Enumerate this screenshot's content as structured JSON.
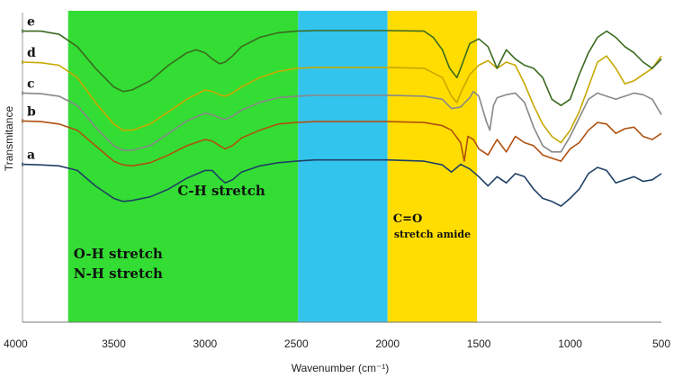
{
  "chart_data": {
    "type": "line",
    "title": "",
    "xlabel": "Wavenumber (cm⁻¹)",
    "ylabel": "Transmitance",
    "xlim": [
      4000,
      500
    ],
    "x_ticks": [
      "4000",
      "3500",
      "3000",
      "2500",
      "2000",
      "1500",
      "1000",
      "500"
    ],
    "x_tick_values": [
      4000,
      3500,
      3000,
      2500,
      2000,
      1500,
      1000,
      500
    ],
    "y_ticks_shown": false,
    "ylim": [
      0,
      100
    ],
    "bands": [
      {
        "from": 3750,
        "to": 2490,
        "color": "#33dd33",
        "labels": [
          "O-H stretch",
          "N-H stretch"
        ]
      },
      {
        "from": 2490,
        "to": 2000,
        "color": "#33c4ee",
        "labels": []
      },
      {
        "from": 2000,
        "to": 1510,
        "color": "#ffdd00",
        "labels": [
          "C=O",
          "stretch amide"
        ]
      }
    ],
    "annotations": [
      {
        "text": "C-H stretch",
        "x": 2910,
        "y": 41
      }
    ],
    "series": [
      {
        "name": "a",
        "color": "#1f3f66",
        "points": [
          [
            4000,
            51
          ],
          [
            3900,
            50.8
          ],
          [
            3800,
            50.5
          ],
          [
            3700,
            49
          ],
          [
            3600,
            44
          ],
          [
            3500,
            40
          ],
          [
            3450,
            39
          ],
          [
            3400,
            39.3
          ],
          [
            3300,
            40.5
          ],
          [
            3200,
            43
          ],
          [
            3100,
            46.5
          ],
          [
            3000,
            49
          ],
          [
            2960,
            49
          ],
          [
            2920,
            46.5
          ],
          [
            2890,
            45
          ],
          [
            2850,
            46
          ],
          [
            2800,
            48.5
          ],
          [
            2700,
            50.5
          ],
          [
            2600,
            51.5
          ],
          [
            2500,
            52
          ],
          [
            2400,
            52.4
          ],
          [
            2200,
            52.4
          ],
          [
            2000,
            52.4
          ],
          [
            1800,
            52
          ],
          [
            1700,
            50.8
          ],
          [
            1650,
            48.5
          ],
          [
            1600,
            51
          ],
          [
            1550,
            49.5
          ],
          [
            1500,
            47
          ],
          [
            1450,
            44
          ],
          [
            1400,
            47
          ],
          [
            1350,
            45
          ],
          [
            1300,
            48
          ],
          [
            1250,
            47
          ],
          [
            1200,
            43
          ],
          [
            1150,
            40
          ],
          [
            1100,
            39
          ],
          [
            1050,
            37.5
          ],
          [
            1000,
            40
          ],
          [
            950,
            43
          ],
          [
            900,
            48
          ],
          [
            850,
            50
          ],
          [
            800,
            49
          ],
          [
            750,
            45
          ],
          [
            700,
            46
          ],
          [
            650,
            47
          ],
          [
            600,
            45.5
          ],
          [
            550,
            46
          ],
          [
            500,
            48
          ]
        ]
      },
      {
        "name": "b",
        "color": "#b05010",
        "points": [
          [
            4000,
            65
          ],
          [
            3900,
            64.8
          ],
          [
            3800,
            64
          ],
          [
            3700,
            62
          ],
          [
            3600,
            57
          ],
          [
            3500,
            52
          ],
          [
            3450,
            50.8
          ],
          [
            3400,
            50.5
          ],
          [
            3300,
            51.5
          ],
          [
            3200,
            54
          ],
          [
            3100,
            57
          ],
          [
            3000,
            59
          ],
          [
            2960,
            58.5
          ],
          [
            2920,
            57
          ],
          [
            2890,
            56
          ],
          [
            2850,
            57
          ],
          [
            2800,
            59.5
          ],
          [
            2700,
            62
          ],
          [
            2600,
            64
          ],
          [
            2500,
            64.5
          ],
          [
            2400,
            64.8
          ],
          [
            2200,
            64.8
          ],
          [
            2000,
            64.8
          ],
          [
            1800,
            64.5
          ],
          [
            1700,
            63.5
          ],
          [
            1650,
            62
          ],
          [
            1600,
            58
          ],
          [
            1580,
            52
          ],
          [
            1560,
            60
          ],
          [
            1530,
            59
          ],
          [
            1500,
            56
          ],
          [
            1450,
            54
          ],
          [
            1400,
            59
          ],
          [
            1350,
            55
          ],
          [
            1300,
            60
          ],
          [
            1250,
            58
          ],
          [
            1200,
            57
          ],
          [
            1150,
            54
          ],
          [
            1100,
            53
          ],
          [
            1050,
            52
          ],
          [
            1000,
            56
          ],
          [
            950,
            58
          ],
          [
            900,
            62
          ],
          [
            850,
            64.5
          ],
          [
            800,
            64
          ],
          [
            750,
            61
          ],
          [
            700,
            62.5
          ],
          [
            650,
            63
          ],
          [
            600,
            60
          ],
          [
            550,
            59
          ],
          [
            500,
            61
          ]
        ]
      },
      {
        "name": "c",
        "color": "#888888",
        "points": [
          [
            4000,
            74
          ],
          [
            3900,
            73.8
          ],
          [
            3800,
            73
          ],
          [
            3700,
            70
          ],
          [
            3600,
            63
          ],
          [
            3500,
            57
          ],
          [
            3450,
            55.5
          ],
          [
            3400,
            55.5
          ],
          [
            3300,
            57
          ],
          [
            3200,
            61
          ],
          [
            3100,
            65
          ],
          [
            3000,
            67.5
          ],
          [
            2960,
            67
          ],
          [
            2920,
            66
          ],
          [
            2890,
            65.5
          ],
          [
            2850,
            66.5
          ],
          [
            2800,
            68.5
          ],
          [
            2700,
            71
          ],
          [
            2600,
            72.5
          ],
          [
            2500,
            73
          ],
          [
            2400,
            73.3
          ],
          [
            2200,
            73.3
          ],
          [
            2000,
            73.3
          ],
          [
            1800,
            73
          ],
          [
            1700,
            72
          ],
          [
            1650,
            69
          ],
          [
            1600,
            69.5
          ],
          [
            1550,
            72.5
          ],
          [
            1530,
            74.5
          ],
          [
            1500,
            73
          ],
          [
            1460,
            65
          ],
          [
            1440,
            62
          ],
          [
            1420,
            70
          ],
          [
            1400,
            72.5
          ],
          [
            1350,
            73.5
          ],
          [
            1300,
            74
          ],
          [
            1250,
            71
          ],
          [
            1200,
            63
          ],
          [
            1150,
            57
          ],
          [
            1100,
            55
          ],
          [
            1050,
            55
          ],
          [
            1000,
            60
          ],
          [
            950,
            66
          ],
          [
            900,
            72
          ],
          [
            850,
            74
          ],
          [
            800,
            73
          ],
          [
            750,
            72
          ],
          [
            700,
            73
          ],
          [
            650,
            74
          ],
          [
            600,
            73.5
          ],
          [
            550,
            72
          ],
          [
            500,
            67
          ]
        ]
      },
      {
        "name": "d",
        "color": "#c8a800",
        "points": [
          [
            4000,
            84
          ],
          [
            3900,
            83.8
          ],
          [
            3800,
            83
          ],
          [
            3700,
            79
          ],
          [
            3600,
            71
          ],
          [
            3500,
            64
          ],
          [
            3450,
            62
          ],
          [
            3400,
            62
          ],
          [
            3300,
            64
          ],
          [
            3200,
            68
          ],
          [
            3100,
            72
          ],
          [
            3000,
            75
          ],
          [
            2960,
            74.5
          ],
          [
            2920,
            73.5
          ],
          [
            2890,
            73
          ],
          [
            2850,
            74
          ],
          [
            2800,
            76
          ],
          [
            2700,
            79
          ],
          [
            2600,
            81
          ],
          [
            2500,
            82
          ],
          [
            2400,
            82.3
          ],
          [
            2200,
            82.3
          ],
          [
            2000,
            82.3
          ],
          [
            1800,
            82
          ],
          [
            1700,
            79
          ],
          [
            1650,
            73
          ],
          [
            1620,
            71
          ],
          [
            1600,
            74
          ],
          [
            1550,
            80
          ],
          [
            1500,
            83
          ],
          [
            1450,
            84.5
          ],
          [
            1400,
            82
          ],
          [
            1350,
            84
          ],
          [
            1300,
            83
          ],
          [
            1250,
            77
          ],
          [
            1200,
            70
          ],
          [
            1150,
            64
          ],
          [
            1100,
            60
          ],
          [
            1050,
            58
          ],
          [
            1000,
            62
          ],
          [
            950,
            68
          ],
          [
            900,
            76
          ],
          [
            850,
            84
          ],
          [
            800,
            86
          ],
          [
            750,
            82
          ],
          [
            700,
            77
          ],
          [
            650,
            78
          ],
          [
            600,
            80
          ],
          [
            550,
            82
          ],
          [
            500,
            86
          ]
        ]
      },
      {
        "name": "e",
        "color": "#3a6a20",
        "points": [
          [
            4000,
            94
          ],
          [
            3900,
            94
          ],
          [
            3800,
            93
          ],
          [
            3700,
            89
          ],
          [
            3600,
            82
          ],
          [
            3500,
            76
          ],
          [
            3450,
            74.5
          ],
          [
            3400,
            75
          ],
          [
            3300,
            78
          ],
          [
            3200,
            83
          ],
          [
            3100,
            87
          ],
          [
            3050,
            88
          ],
          [
            3000,
            87
          ],
          [
            2960,
            85
          ],
          [
            2920,
            83.5
          ],
          [
            2890,
            84
          ],
          [
            2850,
            86
          ],
          [
            2800,
            89
          ],
          [
            2700,
            92
          ],
          [
            2600,
            93.5
          ],
          [
            2500,
            94
          ],
          [
            2400,
            94.2
          ],
          [
            2200,
            94.2
          ],
          [
            2000,
            94.2
          ],
          [
            1800,
            94
          ],
          [
            1750,
            92
          ],
          [
            1700,
            88
          ],
          [
            1660,
            82
          ],
          [
            1620,
            79
          ],
          [
            1600,
            82
          ],
          [
            1550,
            90
          ],
          [
            1500,
            91.5
          ],
          [
            1450,
            89
          ],
          [
            1400,
            82
          ],
          [
            1350,
            88
          ],
          [
            1300,
            85
          ],
          [
            1250,
            83
          ],
          [
            1200,
            82
          ],
          [
            1150,
            79
          ],
          [
            1100,
            72
          ],
          [
            1050,
            70
          ],
          [
            1000,
            72
          ],
          [
            950,
            80
          ],
          [
            900,
            87
          ],
          [
            850,
            92
          ],
          [
            800,
            94
          ],
          [
            750,
            92
          ],
          [
            700,
            89
          ],
          [
            650,
            87
          ],
          [
            600,
            84
          ],
          [
            550,
            82
          ],
          [
            500,
            85
          ]
        ]
      }
    ]
  }
}
